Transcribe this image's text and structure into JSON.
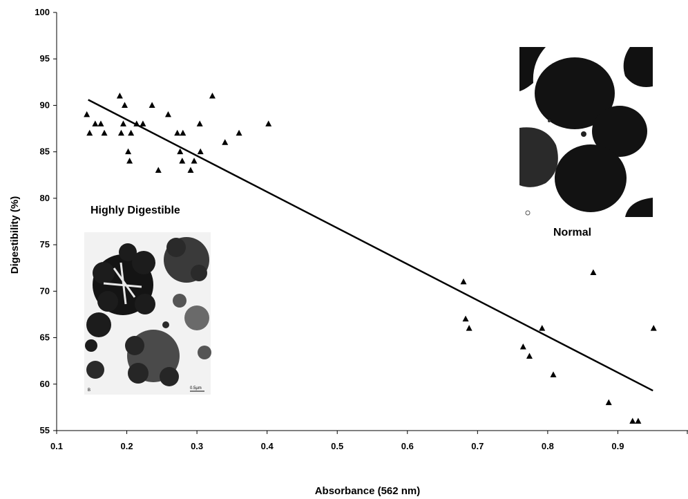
{
  "chart_data": {
    "type": "scatter",
    "xlabel": "Absorbance (562 nm)",
    "ylabel": "Digestibility (%)",
    "xlim": [
      0.1,
      1.0
    ],
    "ylim": [
      55,
      100
    ],
    "xticks": [
      "0.1",
      "0.2",
      "0.3",
      "0.4",
      "0.5",
      "0.6",
      "0.7",
      "0.8",
      "0.9"
    ],
    "yticks": [
      "55",
      "60",
      "65",
      "70",
      "75",
      "80",
      "85",
      "90",
      "95",
      "100"
    ],
    "grid": false,
    "marker": "triangle",
    "series": [
      {
        "points": [
          [
            0.143,
            89
          ],
          [
            0.147,
            87
          ],
          [
            0.155,
            88
          ],
          [
            0.163,
            88
          ],
          [
            0.168,
            87
          ],
          [
            0.19,
            91
          ],
          [
            0.192,
            87
          ],
          [
            0.195,
            88
          ],
          [
            0.197,
            90
          ],
          [
            0.202,
            85
          ],
          [
            0.204,
            84
          ],
          [
            0.206,
            87
          ],
          [
            0.214,
            88
          ],
          [
            0.223,
            88
          ],
          [
            0.236,
            90
          ],
          [
            0.245,
            83
          ],
          [
            0.259,
            89
          ],
          [
            0.272,
            87
          ],
          [
            0.276,
            85
          ],
          [
            0.279,
            84
          ],
          [
            0.28,
            87
          ],
          [
            0.291,
            83
          ],
          [
            0.296,
            84
          ],
          [
            0.304,
            88
          ],
          [
            0.305,
            85
          ],
          [
            0.322,
            91
          ],
          [
            0.34,
            86
          ],
          [
            0.36,
            87
          ],
          [
            0.402,
            88
          ],
          [
            0.68,
            71
          ],
          [
            0.683,
            67
          ],
          [
            0.688,
            66
          ],
          [
            0.765,
            64
          ],
          [
            0.774,
            63
          ],
          [
            0.792,
            66
          ],
          [
            0.808,
            61
          ],
          [
            0.865,
            72
          ],
          [
            0.887,
            58
          ],
          [
            0.921,
            56
          ],
          [
            0.929,
            56
          ],
          [
            0.951,
            66
          ]
        ]
      }
    ],
    "trendline": {
      "x": [
        0.145,
        0.95
      ],
      "y": [
        90.6,
        59.3
      ]
    },
    "annotations": [
      "Highly Digestible",
      "Normal"
    ]
  },
  "inset_highly": {
    "scale_label": "0.5µm",
    "corner_label": "B"
  }
}
